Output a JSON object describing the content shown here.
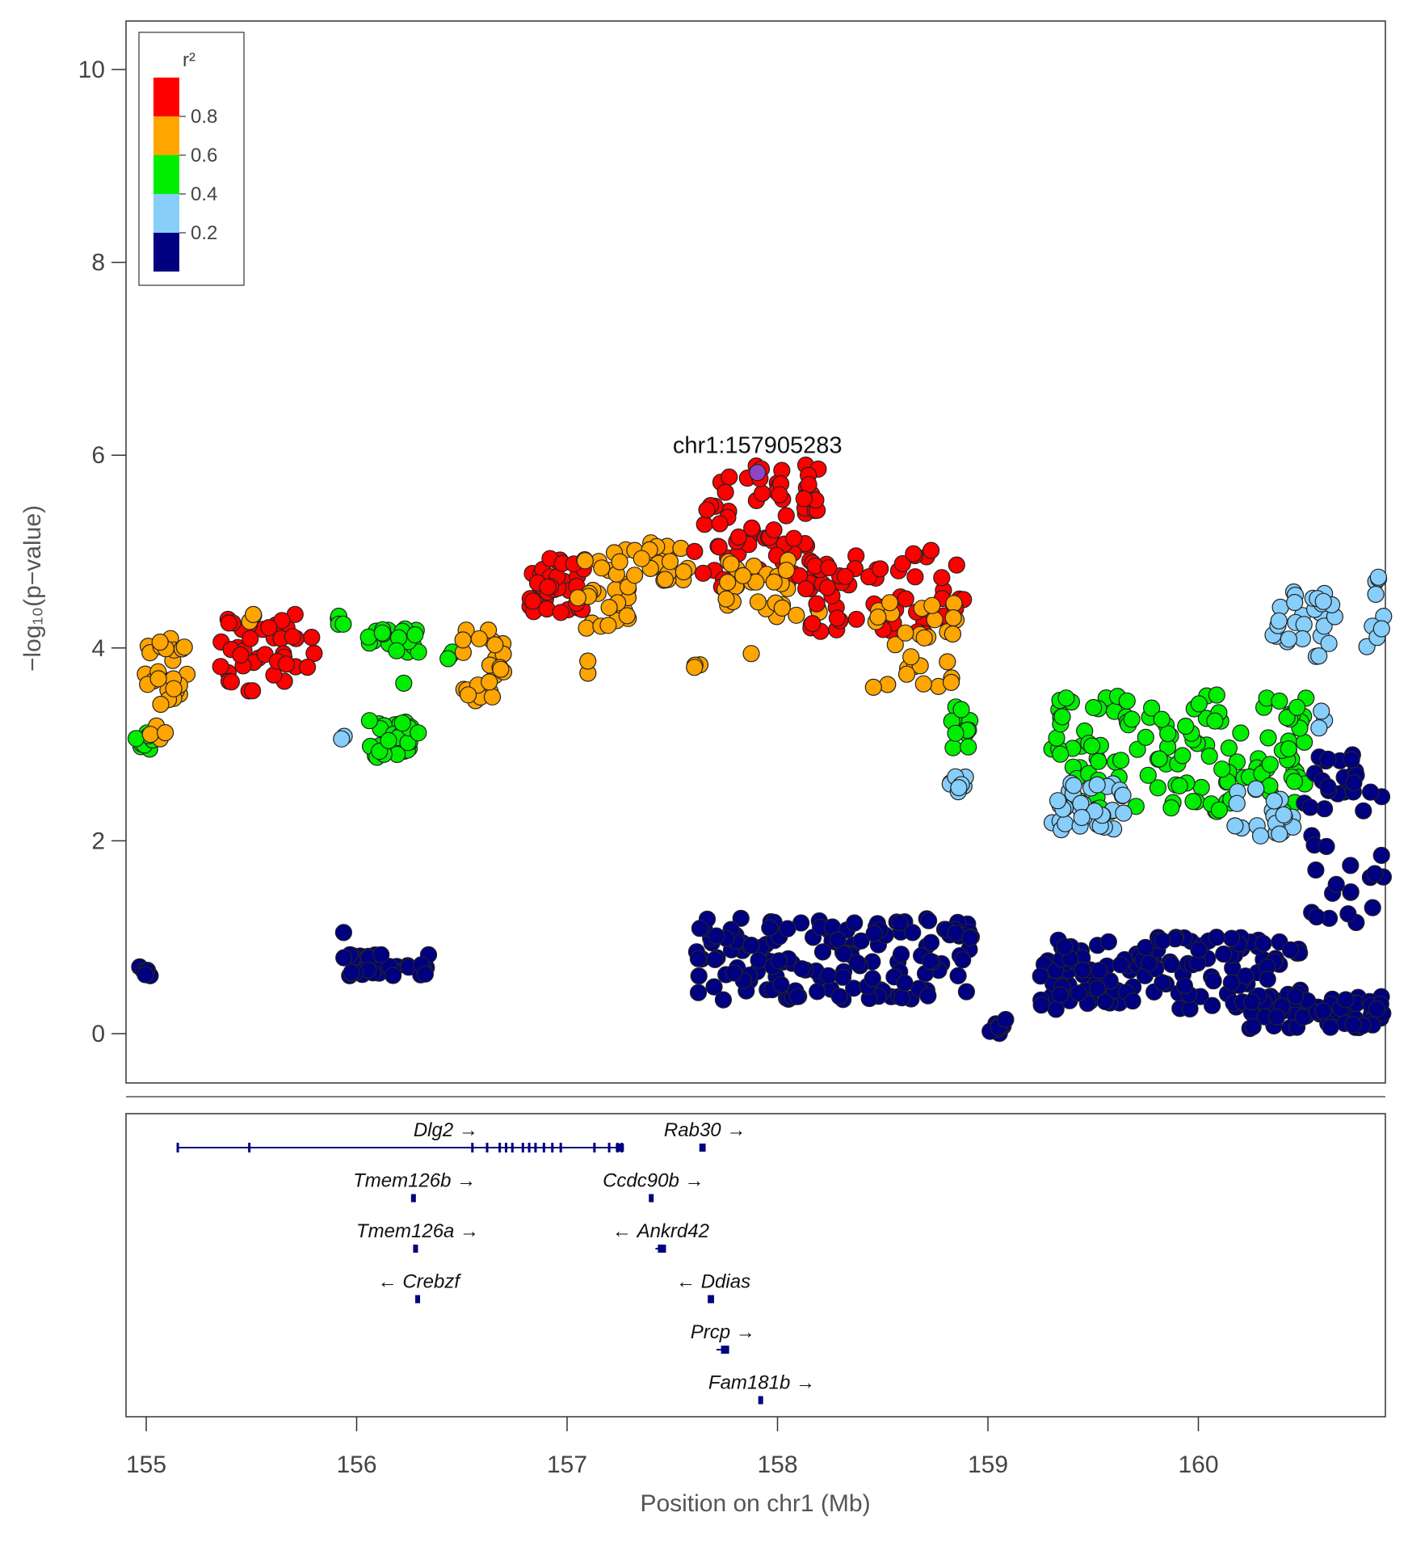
{
  "chart_data": {
    "type": "scatter",
    "xlabel": "Position on chr1 (Mb)",
    "ylabel": "−log₁₀(p−value)",
    "xlim": [
      154.9,
      160.9
    ],
    "ylim": [
      -0.5,
      10.5
    ],
    "x_ticks": [
      "155",
      "156",
      "157",
      "158",
      "159",
      "160"
    ],
    "y_ticks": [
      "0",
      "2",
      "4",
      "6",
      "8",
      "10"
    ],
    "lead_snp": {
      "label": "chr1:157905283",
      "x": 157.905,
      "y": 5.82,
      "color": "#8e44c4"
    },
    "legend": {
      "title": "r²",
      "placement": "top-left",
      "ticks": [
        "0.8",
        "0.6",
        "0.4",
        "0.2"
      ],
      "bins": [
        {
          "range": "0.8-1.0",
          "color": "#ff0000"
        },
        {
          "range": "0.6-0.8",
          "color": "#ffa500"
        },
        {
          "range": "0.4-0.6",
          "color": "#00ee00"
        },
        {
          "range": "0.2-0.4",
          "color": "#87cefa"
        },
        {
          "range": "0.0-0.2",
          "color": "#000080"
        }
      ]
    },
    "clusters": [
      {
        "color": "#ffa500",
        "x": [
          154.97,
          155.2
        ],
        "y": [
          3.4,
          4.1
        ],
        "n": 30
      },
      {
        "color": "#00ee00",
        "x": [
          154.95,
          155.05
        ],
        "y": [
          2.95,
          3.15
        ],
        "n": 8
      },
      {
        "color": "#ffa500",
        "x": [
          155.0,
          155.1
        ],
        "y": [
          3.0,
          3.2
        ],
        "n": 5
      },
      {
        "color": "#ff0000",
        "x": [
          155.35,
          155.8
        ],
        "y": [
          3.55,
          4.35
        ],
        "n": 45
      },
      {
        "color": "#ffa500",
        "x": [
          155.48,
          155.53
        ],
        "y": [
          4.25,
          4.35
        ],
        "n": 2
      },
      {
        "color": "#00ee00",
        "x": [
          155.9,
          155.95
        ],
        "y": [
          4.1,
          4.38
        ],
        "n": 4
      },
      {
        "color": "#87cefa",
        "x": [
          155.92,
          155.95
        ],
        "y": [
          3.05,
          3.1
        ],
        "n": 2
      },
      {
        "color": "#00ee00",
        "x": [
          156.05,
          156.3
        ],
        "y": [
          3.95,
          4.2
        ],
        "n": 25
      },
      {
        "color": "#00ee00",
        "x": [
          156.05,
          156.3
        ],
        "y": [
          2.85,
          3.25
        ],
        "n": 30
      },
      {
        "color": "#00ee00",
        "x": [
          156.2,
          156.25
        ],
        "y": [
          3.6,
          3.65
        ],
        "n": 1
      },
      {
        "color": "#00ee00",
        "x": [
          156.42,
          156.47
        ],
        "y": [
          3.85,
          4.0
        ],
        "n": 3
      },
      {
        "color": "#ffa500",
        "x": [
          156.5,
          156.7
        ],
        "y": [
          3.45,
          4.2
        ],
        "n": 25
      },
      {
        "color": "#ff0000",
        "x": [
          156.82,
          157.1
        ],
        "y": [
          4.35,
          4.95
        ],
        "n": 35
      },
      {
        "color": "#ffa500",
        "x": [
          157.05,
          157.3
        ],
        "y": [
          4.2,
          5.05
        ],
        "n": 30
      },
      {
        "color": "#ffa500",
        "x": [
          157.08,
          157.13
        ],
        "y": [
          3.7,
          4.05
        ],
        "n": 2
      },
      {
        "color": "#ffa500",
        "x": [
          157.3,
          157.6
        ],
        "y": [
          4.7,
          5.1
        ],
        "n": 20
      },
      {
        "color": "#ffa500",
        "x": [
          157.6,
          157.65
        ],
        "y": [
          3.7,
          3.85
        ],
        "n": 3
      },
      {
        "color": "#ff0000",
        "x": [
          157.6,
          158.2
        ],
        "y": [
          4.6,
          5.9
        ],
        "n": 80
      },
      {
        "color": "#ffa500",
        "x": [
          157.75,
          158.25
        ],
        "y": [
          4.3,
          4.95
        ],
        "n": 30
      },
      {
        "color": "#ffa500",
        "x": [
          157.85,
          157.9
        ],
        "y": [
          3.9,
          3.95
        ],
        "n": 1
      },
      {
        "color": "#ff0000",
        "x": [
          158.15,
          158.9
        ],
        "y": [
          4.15,
          5.05
        ],
        "n": 60
      },
      {
        "color": "#ffa500",
        "x": [
          158.45,
          158.85
        ],
        "y": [
          3.55,
          4.5
        ],
        "n": 30
      },
      {
        "color": "#00ee00",
        "x": [
          158.82,
          158.95
        ],
        "y": [
          2.95,
          3.4
        ],
        "n": 15
      },
      {
        "color": "#87cefa",
        "x": [
          158.82,
          158.9
        ],
        "y": [
          2.45,
          2.7
        ],
        "n": 8
      },
      {
        "color": "#00ee00",
        "x": [
          159.3,
          160.55
        ],
        "y": [
          2.3,
          3.55
        ],
        "n": 140
      },
      {
        "color": "#87cefa",
        "x": [
          159.3,
          159.65
        ],
        "y": [
          2.1,
          2.6
        ],
        "n": 35
      },
      {
        "color": "#87cefa",
        "x": [
          160.15,
          160.45
        ],
        "y": [
          2.05,
          2.6
        ],
        "n": 20
      },
      {
        "color": "#87cefa",
        "x": [
          160.35,
          160.65
        ],
        "y": [
          3.9,
          4.65
        ],
        "n": 30
      },
      {
        "color": "#87cefa",
        "x": [
          160.55,
          160.6
        ],
        "y": [
          3.15,
          3.45
        ],
        "n": 3
      },
      {
        "color": "#87cefa",
        "x": [
          160.8,
          160.95
        ],
        "y": [
          4.0,
          4.8
        ],
        "n": 20
      },
      {
        "color": "#000080",
        "x": [
          154.95,
          155.02
        ],
        "y": [
          0.6,
          0.75
        ],
        "n": 6
      },
      {
        "color": "#000080",
        "x": [
          155.92,
          156.35
        ],
        "y": [
          0.6,
          0.85
        ],
        "n": 40
      },
      {
        "color": "#000080",
        "x": [
          155.93,
          155.96
        ],
        "y": [
          1.0,
          1.05
        ],
        "n": 1
      },
      {
        "color": "#000080",
        "x": [
          157.6,
          158.95
        ],
        "y": [
          0.35,
          1.2
        ],
        "n": 150
      },
      {
        "color": "#000080",
        "x": [
          159.0,
          159.1
        ],
        "y": [
          0.0,
          0.2
        ],
        "n": 10
      },
      {
        "color": "#000080",
        "x": [
          159.25,
          160.5
        ],
        "y": [
          0.25,
          1.0
        ],
        "n": 150
      },
      {
        "color": "#000080",
        "x": [
          160.2,
          160.9
        ],
        "y": [
          0.05,
          0.4
        ],
        "n": 60
      },
      {
        "color": "#000080",
        "x": [
          160.5,
          160.95
        ],
        "y": [
          1.0,
          2.9
        ],
        "n": 50
      }
    ],
    "genes": [
      {
        "name": "Dlg2",
        "strand": "+",
        "start": 155.15,
        "end": 157.27,
        "row": 0,
        "exons": [
          155.15,
          155.49,
          156.55,
          156.62,
          156.68,
          156.71,
          156.74,
          156.79,
          156.82,
          156.85,
          156.89,
          156.93,
          156.97,
          157.13,
          157.2,
          157.24,
          157.26
        ]
      },
      {
        "name": "Rab30",
        "strand": "+",
        "start": 157.64,
        "end": 157.67,
        "row": 0,
        "exons": []
      },
      {
        "name": "Tmem126b",
        "strand": "+",
        "start": 156.27,
        "end": 156.28,
        "row": 1,
        "exons": []
      },
      {
        "name": "Ccdc90b",
        "strand": "+",
        "start": 157.4,
        "end": 157.42,
        "row": 1,
        "exons": []
      },
      {
        "name": "Tmem126a",
        "strand": "+",
        "start": 156.28,
        "end": 156.3,
        "row": 2,
        "exons": []
      },
      {
        "name": "Ankrd42",
        "strand": "-",
        "start": 157.42,
        "end": 157.47,
        "row": 2,
        "exons": []
      },
      {
        "name": "Crebzf",
        "strand": "-",
        "start": 156.29,
        "end": 156.3,
        "row": 3,
        "exons": []
      },
      {
        "name": "Ddias",
        "strand": "-",
        "start": 157.68,
        "end": 157.71,
        "row": 3,
        "exons": []
      },
      {
        "name": "Prcp",
        "strand": "+",
        "start": 157.71,
        "end": 157.77,
        "row": 4,
        "exons": []
      },
      {
        "name": "Fam181b",
        "strand": "+",
        "start": 157.92,
        "end": 157.93,
        "row": 5,
        "exons": []
      }
    ]
  }
}
